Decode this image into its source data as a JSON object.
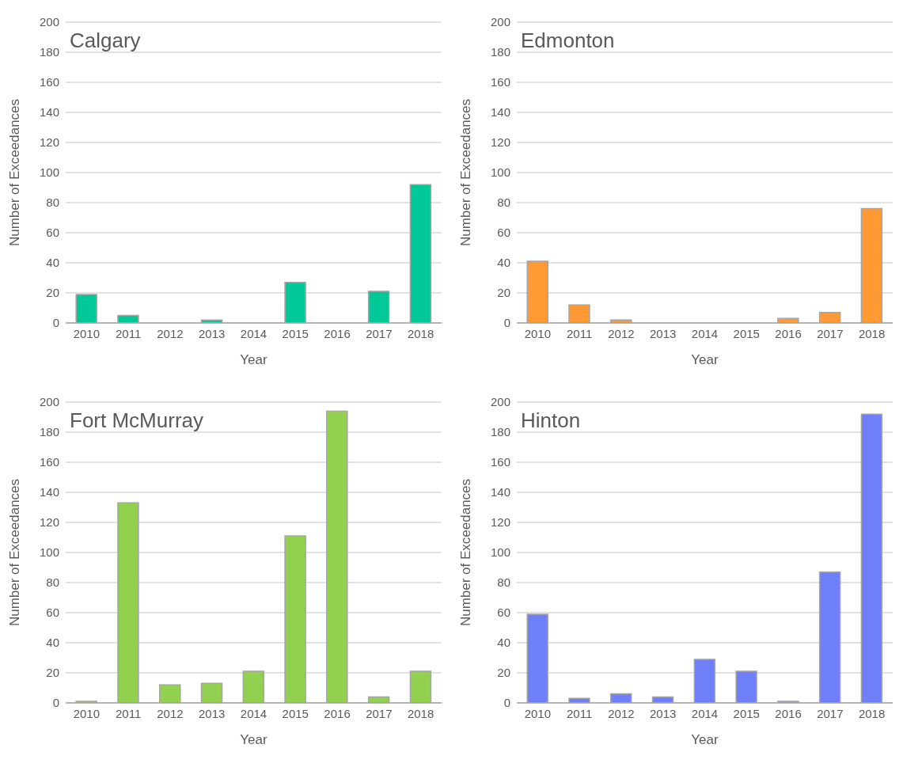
{
  "chart_data": [
    {
      "type": "bar",
      "title": "Calgary",
      "xlabel": "Year",
      "ylabel": "Number of Exceedances",
      "categories": [
        "2010",
        "2011",
        "2012",
        "2013",
        "2014",
        "2015",
        "2016",
        "2017",
        "2018"
      ],
      "values": [
        19,
        5,
        0,
        2,
        0,
        27,
        0,
        21,
        92
      ],
      "color": "#00c896",
      "ylim": [
        0,
        200
      ],
      "yticks": [
        0,
        20,
        40,
        60,
        80,
        100,
        120,
        140,
        160,
        180,
        200
      ],
      "grid": "y"
    },
    {
      "type": "bar",
      "title": "Edmonton",
      "xlabel": "Year",
      "ylabel": "Number of Exceedances",
      "categories": [
        "2010",
        "2011",
        "2012",
        "2013",
        "2014",
        "2015",
        "2016",
        "2017",
        "2018"
      ],
      "values": [
        41,
        12,
        2,
        0,
        0,
        0,
        3,
        7,
        76
      ],
      "color": "#ff9933",
      "ylim": [
        0,
        200
      ],
      "yticks": [
        0,
        20,
        40,
        60,
        80,
        100,
        120,
        140,
        160,
        180,
        200
      ],
      "grid": "y"
    },
    {
      "type": "bar",
      "title": "Fort McMurray",
      "xlabel": "Year",
      "ylabel": "Number of Exceedances",
      "categories": [
        "2010",
        "2011",
        "2012",
        "2013",
        "2014",
        "2015",
        "2016",
        "2017",
        "2018"
      ],
      "values": [
        1,
        133,
        12,
        13,
        21,
        111,
        194,
        4,
        21
      ],
      "color": "#92d050",
      "ylim": [
        0,
        200
      ],
      "yticks": [
        0,
        20,
        40,
        60,
        80,
        100,
        120,
        140,
        160,
        180,
        200
      ],
      "grid": "y"
    },
    {
      "type": "bar",
      "title": "Hinton",
      "xlabel": "Year",
      "ylabel": "Number of Exceedances",
      "categories": [
        "2010",
        "2011",
        "2012",
        "2013",
        "2014",
        "2015",
        "2016",
        "2017",
        "2018"
      ],
      "values": [
        59,
        3,
        6,
        4,
        29,
        21,
        1,
        87,
        192
      ],
      "color": "#6f7ff7",
      "ylim": [
        0,
        200
      ],
      "yticks": [
        0,
        20,
        40,
        60,
        80,
        100,
        120,
        140,
        160,
        180,
        200
      ],
      "grid": "y"
    }
  ]
}
